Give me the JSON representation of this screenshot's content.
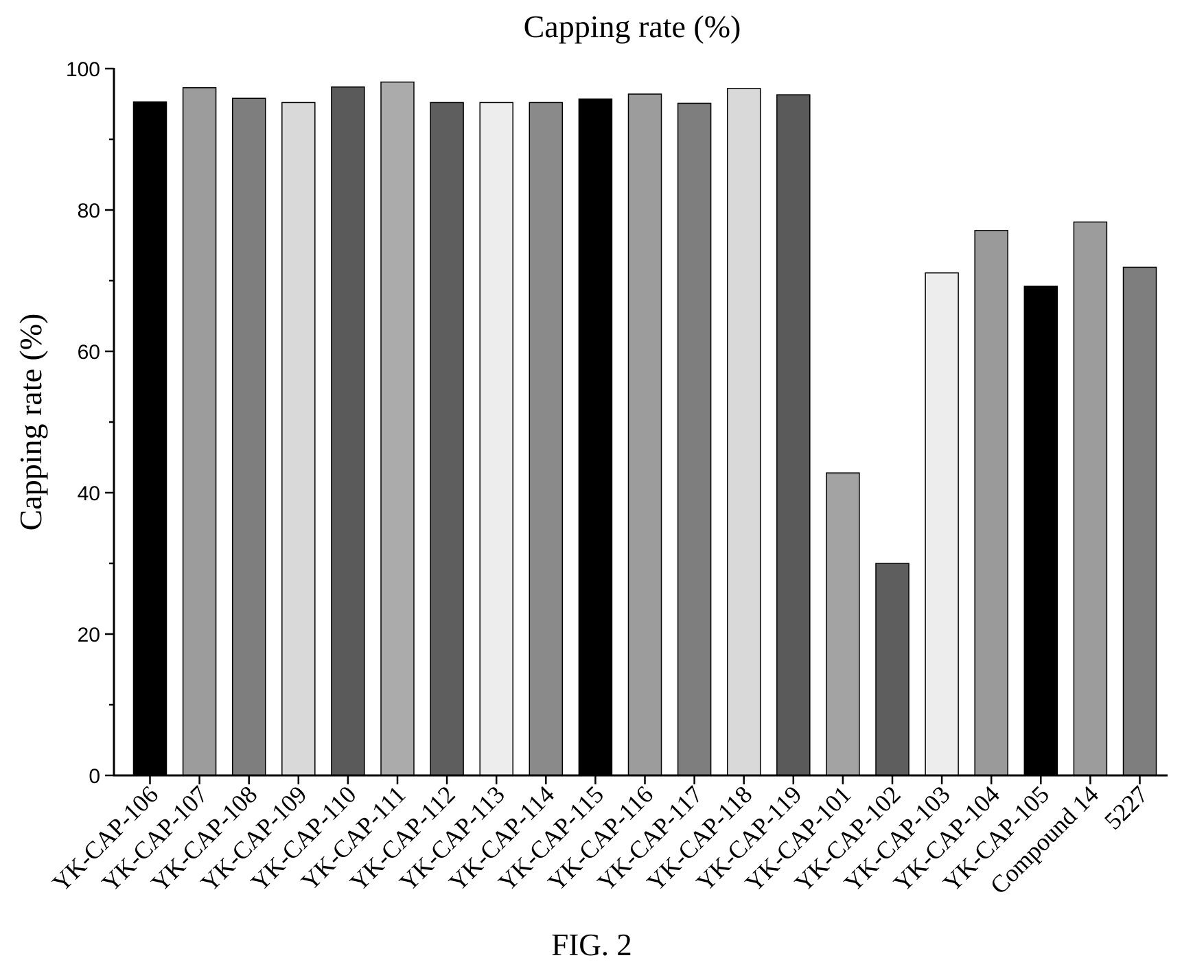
{
  "figure_caption": "FIG. 2",
  "chart_data": {
    "type": "bar",
    "title": "Capping rate (%)",
    "ylabel": "Capping rate (%)",
    "ylim": [
      0,
      100
    ],
    "yticks": [
      0,
      20,
      40,
      60,
      80,
      100
    ],
    "grid": false,
    "legend": "none",
    "categories": [
      "YK-CAP-106",
      "YK-CAP-107",
      "YK-CAP-108",
      "YK-CAP-109",
      "YK-CAP-110",
      "YK-CAP-111",
      "YK-CAP-112",
      "YK-CAP-113",
      "YK-CAP-114",
      "YK-CAP-115",
      "YK-CAP-116",
      "YK-CAP-117",
      "YK-CAP-118",
      "YK-CAP-119",
      "YK-CAP-101",
      "YK-CAP-102",
      "YK-CAP-103",
      "YK-CAP-104",
      "YK-CAP-105",
      "Compound 14",
      "5227"
    ],
    "values": [
      95.3,
      97.3,
      95.8,
      95.2,
      97.4,
      98.1,
      95.2,
      95.2,
      95.2,
      95.7,
      96.4,
      95.1,
      97.2,
      96.3,
      42.8,
      30.0,
      71.1,
      77.1,
      69.2,
      78.3,
      71.9
    ],
    "colors": [
      "#000000",
      "#9c9c9c",
      "#7e7e7e",
      "#d9d9d9",
      "#5a5a5a",
      "#ababab",
      "#5e5e5e",
      "#ededed",
      "#8a8a8a",
      "#000000",
      "#9c9c9c",
      "#7e7e7e",
      "#d9d9d9",
      "#5a5a5a",
      "#a3a3a3",
      "#5e5e5e",
      "#ededed",
      "#9a9a9a",
      "#000000",
      "#9c9c9c",
      "#7e7e7e"
    ]
  }
}
